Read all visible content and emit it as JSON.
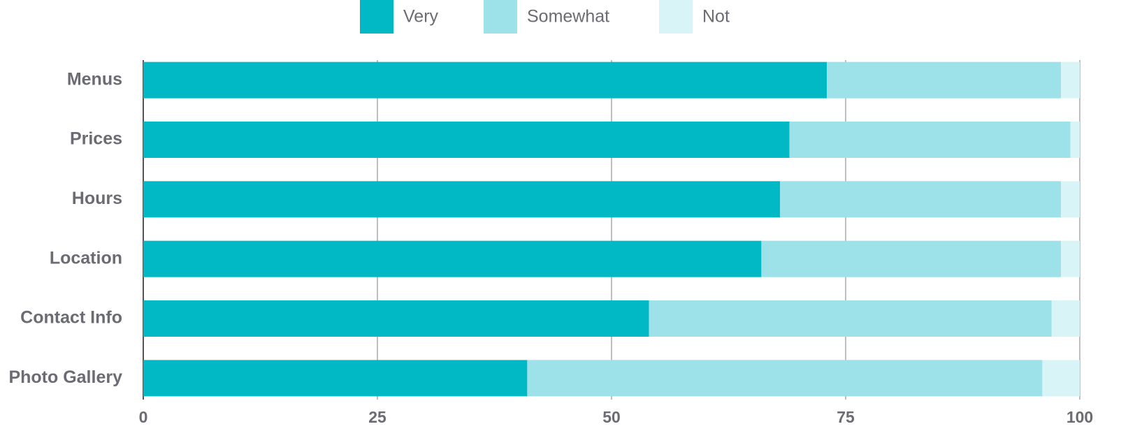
{
  "chart_data": {
    "type": "stacked-bar-horizontal",
    "categories": [
      "Menus",
      "Prices",
      "Hours",
      "Location",
      "Contact Info",
      "Photo Gallery"
    ],
    "series": [
      {
        "name": "Very",
        "color": "#00b9c5",
        "values": [
          73,
          69,
          68,
          66,
          54,
          41
        ]
      },
      {
        "name": "Somewhat",
        "color": "#9ce2e8",
        "values": [
          25,
          30,
          30,
          32,
          43,
          55
        ]
      },
      {
        "name": "Not",
        "color": "#d9f4f6",
        "values": [
          2,
          1,
          2,
          2,
          3,
          4
        ]
      }
    ],
    "xlim": [
      0,
      100
    ],
    "xticks": [
      0,
      25,
      50,
      75,
      100
    ],
    "grid": true,
    "legend": "top"
  }
}
